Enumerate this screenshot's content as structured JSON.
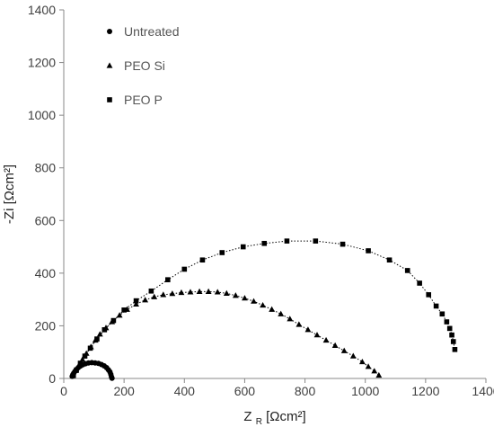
{
  "chart_data": {
    "type": "scatter",
    "title": "",
    "xlabel": "Z",
    "xlabel_sub": "R",
    "xlabel_unit": " [Ωcm²]",
    "ylabel": "-Zi [Ωcm²]",
    "xlim": [
      0,
      1400
    ],
    "ylim": [
      0,
      1400
    ],
    "xticks": [
      0,
      200,
      400,
      600,
      800,
      1000,
      1200,
      1400
    ],
    "yticks": [
      0,
      200,
      400,
      600,
      800,
      1000,
      1200,
      1400
    ],
    "grid": false,
    "legend_position": "top-left",
    "series": [
      {
        "name": "Untreated",
        "marker": "circle",
        "color": "#000000",
        "points": [
          [
            28,
            8
          ],
          [
            30,
            14
          ],
          [
            33,
            20
          ],
          [
            37,
            27
          ],
          [
            42,
            34
          ],
          [
            48,
            41
          ],
          [
            55,
            47
          ],
          [
            63,
            52
          ],
          [
            72,
            56
          ],
          [
            82,
            59
          ],
          [
            93,
            60
          ],
          [
            104,
            59
          ],
          [
            115,
            57
          ],
          [
            125,
            53
          ],
          [
            134,
            48
          ],
          [
            142,
            41
          ],
          [
            148,
            33
          ],
          [
            153,
            25
          ],
          [
            156,
            16
          ],
          [
            158,
            7
          ],
          [
            160,
            1
          ]
        ]
      },
      {
        "name": "PEO Si",
        "marker": "triangle",
        "color": "#000000",
        "points": [
          [
            30,
            10
          ],
          [
            40,
            30
          ],
          [
            50,
            50
          ],
          [
            62,
            72
          ],
          [
            75,
            95
          ],
          [
            90,
            120
          ],
          [
            105,
            145
          ],
          [
            120,
            168
          ],
          [
            140,
            192
          ],
          [
            160,
            215
          ],
          [
            185,
            240
          ],
          [
            210,
            262
          ],
          [
            240,
            282
          ],
          [
            270,
            298
          ],
          [
            300,
            310
          ],
          [
            330,
            318
          ],
          [
            360,
            322
          ],
          [
            390,
            326
          ],
          [
            420,
            328
          ],
          [
            450,
            330
          ],
          [
            480,
            330
          ],
          [
            510,
            328
          ],
          [
            540,
            323
          ],
          [
            570,
            315
          ],
          [
            600,
            305
          ],
          [
            630,
            293
          ],
          [
            660,
            278
          ],
          [
            690,
            262
          ],
          [
            720,
            245
          ],
          [
            750,
            226
          ],
          [
            780,
            205
          ],
          [
            810,
            185
          ],
          [
            840,
            165
          ],
          [
            870,
            145
          ],
          [
            900,
            125
          ],
          [
            930,
            105
          ],
          [
            960,
            85
          ],
          [
            990,
            63
          ],
          [
            1010,
            45
          ],
          [
            1030,
            28
          ],
          [
            1045,
            12
          ]
        ]
      },
      {
        "name": "PEO P",
        "marker": "square",
        "color": "#000000",
        "points": [
          [
            32,
            12
          ],
          [
            42,
            32
          ],
          [
            55,
            58
          ],
          [
            70,
            85
          ],
          [
            88,
            115
          ],
          [
            110,
            150
          ],
          [
            135,
            185
          ],
          [
            165,
            220
          ],
          [
            200,
            260
          ],
          [
            240,
            295
          ],
          [
            290,
            332
          ],
          [
            345,
            375
          ],
          [
            400,
            415
          ],
          [
            460,
            450
          ],
          [
            525,
            478
          ],
          [
            595,
            500
          ],
          [
            665,
            513
          ],
          [
            740,
            522
          ],
          [
            835,
            522
          ],
          [
            925,
            510
          ],
          [
            1010,
            485
          ],
          [
            1080,
            450
          ],
          [
            1140,
            410
          ],
          [
            1180,
            362
          ],
          [
            1210,
            318
          ],
          [
            1235,
            275
          ],
          [
            1255,
            245
          ],
          [
            1270,
            215
          ],
          [
            1280,
            190
          ],
          [
            1287,
            165
          ],
          [
            1292,
            140
          ],
          [
            1297,
            110
          ]
        ]
      }
    ]
  }
}
